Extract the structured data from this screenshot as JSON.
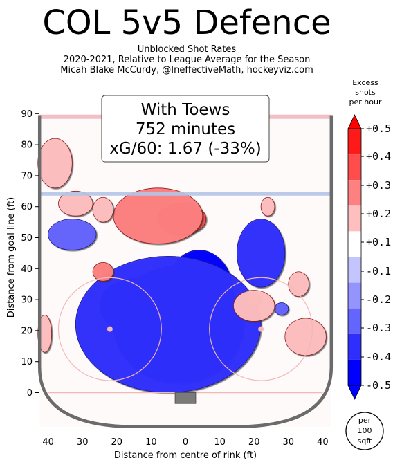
{
  "header": {
    "title": "COL 5v5 Defence",
    "subtitle_lines": [
      "Unblocked Shot Rates",
      "2020-2021, Relative to League Average for the Season",
      "Micah Blake McCurdy, @IneffectiveMath, hockeyviz.com"
    ]
  },
  "info_box": {
    "lines": [
      "With Toews",
      "752 minutes",
      "xG/60: 1.67 (-33%)"
    ]
  },
  "colorbar": {
    "title_lines": [
      "Excess",
      "shots",
      "per hour"
    ],
    "ticks": [
      "+0.5",
      "+0.4",
      "+0.3",
      "+0.2",
      "+0.1",
      "-0.1",
      "-0.2",
      "-0.3",
      "-0.4",
      "-0.5"
    ],
    "colors": [
      "#ff1a1a",
      "#ff4c4c",
      "#ff8080",
      "#ffbfbf",
      "#ffffff",
      "#c4c4ff",
      "#9494ff",
      "#6464ff",
      "#2e2eff",
      "#0000ff"
    ],
    "top_arrow_color": "#ff0000",
    "bottom_arrow_color": "#0000ff"
  },
  "unit_badge": {
    "lines": [
      "per",
      "100",
      "sqft"
    ]
  },
  "chart_data": {
    "type": "heatmap",
    "title": "COL 5v5 Defence",
    "xlabel": "Distance from centre of rink (ft)",
    "ylabel": "Distance from goal line (ft)",
    "xlim": [
      -42.5,
      42.5
    ],
    "ylim": [
      -11,
      90
    ],
    "x_ticks": [
      -40,
      -30,
      -20,
      -10,
      0,
      10,
      20,
      30,
      40
    ],
    "x_tick_labels": [
      "40",
      "30",
      "20",
      "10",
      "0",
      "10",
      "20",
      "30",
      "40"
    ],
    "y_ticks": [
      0,
      10,
      20,
      30,
      40,
      50,
      60,
      70,
      80,
      90
    ],
    "y_tick_labels": [
      "0",
      "10",
      "20",
      "30",
      "40",
      "50",
      "60",
      "70",
      "80",
      "90"
    ],
    "color_scale": [
      -0.5,
      0.5
    ],
    "regions": [
      {
        "x": -2,
        "y": 22,
        "rx": 19,
        "ry": 19,
        "value": -0.5
      },
      {
        "x": -14,
        "y": 28,
        "rx": 11,
        "ry": 9,
        "value": -0.5
      },
      {
        "x": 4,
        "y": 32,
        "rx": 10,
        "ry": 14,
        "value": -0.4
      },
      {
        "x": -5,
        "y": 22,
        "rx": 27,
        "ry": 22,
        "value": -0.3
      },
      {
        "x": 22,
        "y": 45,
        "rx": 7,
        "ry": 11,
        "value": -0.3
      },
      {
        "x": -33,
        "y": 51,
        "rx": 7,
        "ry": 5,
        "value": -0.2
      },
      {
        "x": 28,
        "y": 27,
        "rx": 2,
        "ry": 2,
        "value": -0.2
      },
      {
        "x": -1,
        "y": 56,
        "rx": 7,
        "ry": 5,
        "value": 0.3
      },
      {
        "x": -8,
        "y": 57,
        "rx": 13,
        "ry": 9,
        "value": 0.2
      },
      {
        "x": -38,
        "y": 74,
        "rx": 5,
        "ry": 8,
        "value": 0.1
      },
      {
        "x": -32,
        "y": 61,
        "rx": 5,
        "ry": 4,
        "value": 0.1
      },
      {
        "x": -24,
        "y": 59,
        "rx": 3,
        "ry": 4,
        "value": 0.1
      },
      {
        "x": -24,
        "y": 39,
        "rx": 3,
        "ry": 3,
        "value": 0.2
      },
      {
        "x": 20,
        "y": 30,
        "rx": 2,
        "ry": 2,
        "value": 0.2
      },
      {
        "x": 20,
        "y": 28,
        "rx": 6,
        "ry": 5,
        "value": 0.1
      },
      {
        "x": 35,
        "y": 18,
        "rx": 6,
        "ry": 6,
        "value": 0.1
      },
      {
        "x": 33,
        "y": 35,
        "rx": 3,
        "ry": 4,
        "value": 0.1
      },
      {
        "x": -41,
        "y": 19,
        "rx": 2,
        "ry": 6,
        "value": 0.1
      },
      {
        "x": 24,
        "y": 60,
        "rx": 2,
        "ry": 3,
        "value": 0.1
      }
    ]
  }
}
